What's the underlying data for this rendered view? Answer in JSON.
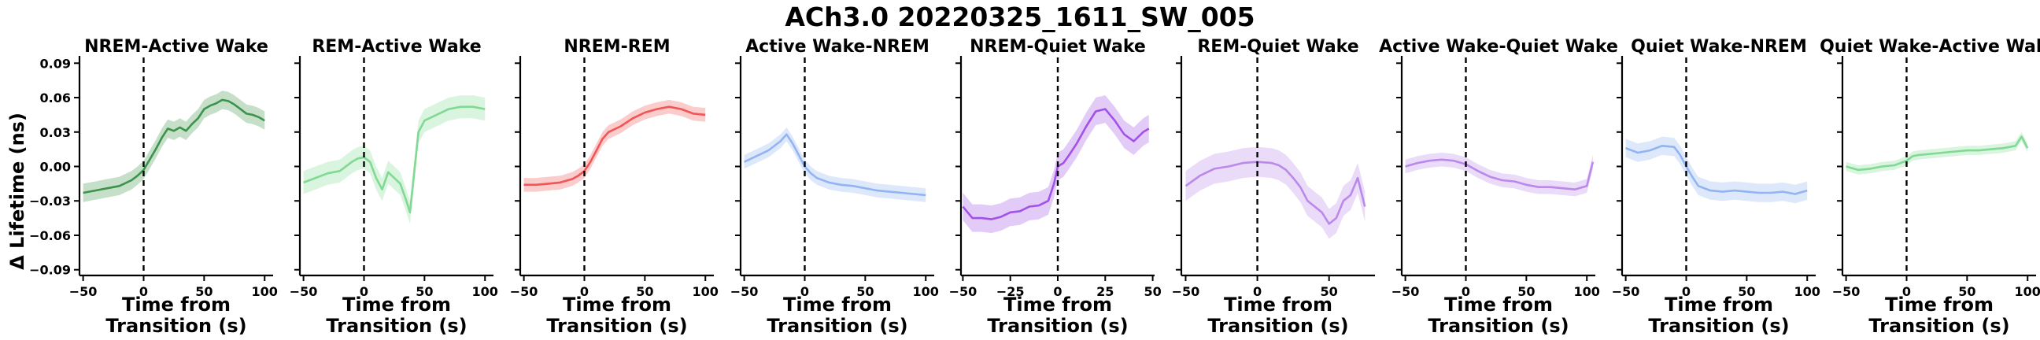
{
  "chart_data": {
    "type": "line",
    "title": "ACh3.0 20220325_1611_SW_005",
    "ylabel": "Δ Lifetime (ns)",
    "ylim": [
      -0.095,
      0.095
    ],
    "yticks": [
      -0.09,
      -0.06,
      -0.03,
      0.0,
      0.03,
      0.06,
      0.09
    ],
    "ytick_labels": [
      "−0.09",
      "−0.06",
      "−0.03",
      "0.00",
      "0.03",
      "0.06",
      "0.09"
    ],
    "xlabel_lines": [
      "Time from",
      "Transition (s)"
    ],
    "colors": {
      "green": "#2e8b3e",
      "lightgreen": "#77d68b",
      "red": "#f04848",
      "blue": "#8aaef0",
      "purple": "#9b45e6",
      "lilac": "#b57fe8"
    },
    "panels": [
      {
        "title": "NREM-Active Wake",
        "color": "#2e8b3e",
        "xlim": [
          -53,
          107
        ],
        "xticks": [
          -50,
          0,
          50,
          100
        ],
        "xtick_labels": [
          "−50",
          "0",
          "50",
          "100"
        ],
        "x": [
          -50,
          -40,
          -30,
          -20,
          -10,
          -5,
          0,
          5,
          10,
          15,
          20,
          25,
          30,
          35,
          40,
          45,
          50,
          55,
          60,
          65,
          70,
          75,
          80,
          85,
          90,
          95,
          100
        ],
        "y": [
          -0.023,
          -0.021,
          -0.019,
          -0.017,
          -0.012,
          -0.008,
          -0.003,
          0.006,
          0.015,
          0.025,
          0.033,
          0.031,
          0.034,
          0.031,
          0.037,
          0.042,
          0.05,
          0.053,
          0.055,
          0.058,
          0.057,
          0.054,
          0.05,
          0.046,
          0.045,
          0.043,
          0.04
        ],
        "spread": 0.008
      },
      {
        "title": "REM-Active Wake",
        "color": "#77d68b",
        "xlim": [
          -53,
          107
        ],
        "xticks": [
          -50,
          0,
          50,
          100
        ],
        "xtick_labels": [
          "−50",
          "0",
          "50",
          "100"
        ],
        "x": [
          -50,
          -40,
          -30,
          -20,
          -10,
          -5,
          0,
          5,
          10,
          15,
          20,
          25,
          30,
          35,
          38,
          40,
          42,
          45,
          50,
          60,
          70,
          80,
          90,
          100
        ],
        "y": [
          -0.014,
          -0.01,
          -0.006,
          -0.004,
          0.004,
          0.007,
          0.008,
          0.004,
          -0.01,
          -0.02,
          -0.005,
          -0.01,
          -0.015,
          -0.03,
          -0.04,
          -0.02,
          0.0,
          0.03,
          0.04,
          0.045,
          0.05,
          0.052,
          0.052,
          0.05
        ],
        "spread": 0.01
      },
      {
        "title": "NREM-REM",
        "color": "#f04848",
        "xlim": [
          -53,
          107
        ],
        "xticks": [
          -50,
          0,
          50,
          100
        ],
        "xtick_labels": [
          "−50",
          "0",
          "50",
          "100"
        ],
        "x": [
          -50,
          -40,
          -30,
          -20,
          -10,
          -5,
          0,
          5,
          10,
          15,
          20,
          30,
          40,
          50,
          60,
          70,
          80,
          90,
          100
        ],
        "y": [
          -0.016,
          -0.016,
          -0.015,
          -0.014,
          -0.011,
          -0.008,
          -0.004,
          0.004,
          0.014,
          0.024,
          0.03,
          0.035,
          0.042,
          0.047,
          0.05,
          0.052,
          0.05,
          0.046,
          0.045
        ],
        "spread": 0.006
      },
      {
        "title": "Active Wake-NREM",
        "color": "#8aaef0",
        "xlim": [
          -53,
          107
        ],
        "xticks": [
          -50,
          0,
          50,
          100
        ],
        "xtick_labels": [
          "−50",
          "0",
          "50",
          "100"
        ],
        "x": [
          -50,
          -40,
          -30,
          -20,
          -15,
          -10,
          -5,
          0,
          5,
          10,
          20,
          30,
          40,
          50,
          60,
          70,
          80,
          90,
          100
        ],
        "y": [
          0.004,
          0.009,
          0.014,
          0.022,
          0.028,
          0.02,
          0.01,
          0.0,
          -0.006,
          -0.01,
          -0.014,
          -0.016,
          -0.017,
          -0.019,
          -0.021,
          -0.022,
          -0.023,
          -0.024,
          -0.025
        ],
        "spread": 0.006
      },
      {
        "title": "NREM-Quiet Wake",
        "color": "#9b45e6",
        "xlim": [
          -51,
          51
        ],
        "xticks": [
          -50,
          -25,
          0,
          25,
          50
        ],
        "xtick_labels": [
          "−50",
          "−25",
          "0",
          "25",
          "50"
        ],
        "x": [
          -50,
          -45,
          -40,
          -35,
          -30,
          -25,
          -20,
          -15,
          -10,
          -5,
          -2,
          0,
          3,
          6,
          10,
          15,
          20,
          25,
          30,
          35,
          40,
          45,
          48
        ],
        "y": [
          -0.035,
          -0.045,
          -0.045,
          -0.046,
          -0.044,
          -0.04,
          -0.039,
          -0.035,
          -0.034,
          -0.03,
          -0.015,
          0.0,
          0.003,
          0.01,
          0.02,
          0.035,
          0.048,
          0.05,
          0.04,
          0.028,
          0.022,
          0.03,
          0.033
        ],
        "spread": 0.012
      },
      {
        "title": "REM-Quiet Wake",
        "color": "#b57fe8",
        "xlim": [
          -53,
          82
        ],
        "xticks": [
          -50,
          0,
          50
        ],
        "xtick_labels": [
          "−50",
          "0",
          "50"
        ],
        "x": [
          -50,
          -40,
          -30,
          -20,
          -10,
          0,
          10,
          15,
          20,
          25,
          30,
          35,
          40,
          45,
          50,
          55,
          60,
          65,
          70,
          75
        ],
        "y": [
          -0.017,
          -0.008,
          -0.002,
          0.0,
          0.003,
          0.004,
          0.003,
          0.001,
          -0.003,
          -0.01,
          -0.018,
          -0.03,
          -0.035,
          -0.04,
          -0.05,
          -0.045,
          -0.03,
          -0.025,
          -0.01,
          -0.035
        ],
        "spread": 0.013
      },
      {
        "title": "Active Wake-Quiet Wake",
        "color": "#b57fe8",
        "xlim": [
          -53,
          107
        ],
        "xticks": [
          -50,
          0,
          50,
          100
        ],
        "xtick_labels": [
          "−50",
          "0",
          "50",
          "100"
        ],
        "x": [
          -50,
          -40,
          -30,
          -20,
          -10,
          0,
          10,
          20,
          30,
          40,
          50,
          60,
          70,
          80,
          90,
          100,
          105
        ],
        "y": [
          0.0,
          0.003,
          0.005,
          0.006,
          0.005,
          0.002,
          -0.004,
          -0.009,
          -0.012,
          -0.013,
          -0.016,
          -0.018,
          -0.018,
          -0.019,
          -0.02,
          -0.017,
          0.004
        ],
        "spread": 0.006
      },
      {
        "title": "Quiet Wake-NREM",
        "color": "#8aaef0",
        "xlim": [
          -53,
          107
        ],
        "xticks": [
          -50,
          0,
          50,
          100
        ],
        "xtick_labels": [
          "−50",
          "0",
          "50",
          "100"
        ],
        "x": [
          -50,
          -40,
          -30,
          -20,
          -10,
          -5,
          0,
          5,
          10,
          20,
          30,
          40,
          50,
          60,
          70,
          80,
          90,
          100
        ],
        "y": [
          0.016,
          0.012,
          0.014,
          0.018,
          0.017,
          0.01,
          0.0,
          -0.009,
          -0.017,
          -0.021,
          -0.022,
          -0.021,
          -0.022,
          -0.023,
          -0.023,
          -0.022,
          -0.024,
          -0.021
        ],
        "spread": 0.008
      },
      {
        "title": "Quiet Wake-Active Wake",
        "color": "#77d68b",
        "xlim": [
          -53,
          107
        ],
        "xticks": [
          -50,
          0,
          50,
          100
        ],
        "xtick_labels": [
          "−50",
          "0",
          "50",
          "100"
        ],
        "x": [
          -50,
          -40,
          -30,
          -20,
          -10,
          -5,
          0,
          5,
          10,
          20,
          30,
          40,
          50,
          60,
          70,
          80,
          90,
          95,
          100
        ],
        "y": [
          0.0,
          -0.003,
          -0.002,
          0.0,
          0.001,
          0.003,
          0.005,
          0.009,
          0.01,
          0.011,
          0.012,
          0.013,
          0.014,
          0.014,
          0.015,
          0.016,
          0.018,
          0.026,
          0.016
        ],
        "spread": 0.004
      }
    ]
  }
}
